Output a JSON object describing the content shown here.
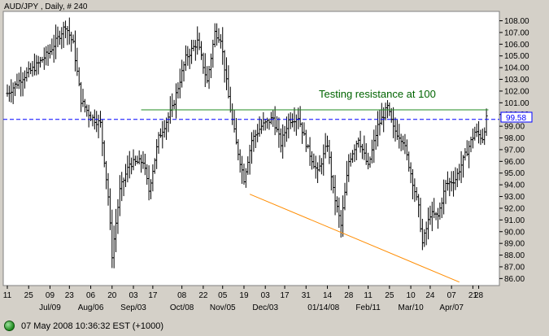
{
  "colors": {
    "background": "#d4d0c8",
    "plot_background": "#ffffff",
    "bars": "#000000",
    "support_line": "#ff8c00",
    "resistance_line": "#228b22",
    "dashed_line": "#0000ff",
    "annotation": "#006400"
  },
  "chart_data": {
    "type": "ohlc",
    "title": "AUD/JPY , Daily, # 240",
    "ylim": [
      85.4,
      108.8
    ],
    "yticks": [
      86.0,
      87.0,
      88.0,
      89.0,
      90.0,
      91.0,
      92.0,
      93.0,
      94.0,
      95.0,
      96.0,
      97.0,
      98.0,
      99.0,
      100.0,
      101.0,
      102.0,
      103.0,
      104.0,
      105.0,
      106.0,
      107.0,
      108.0
    ],
    "ytick_labels": [
      "86.00",
      "87.00",
      "88.00",
      "89.00",
      "90.00",
      "91.00",
      "92.00",
      "93.00",
      "94.00",
      "95.00",
      "96.00",
      "97.00",
      "98.00",
      "99.00",
      "100.00",
      "101.00",
      "102.00",
      "103.00",
      "104.00",
      "105.00",
      "106.00",
      "107.00",
      "108.00"
    ],
    "day_ticks": [
      {
        "label": "11",
        "i": 0
      },
      {
        "label": "25",
        "i": 11
      },
      {
        "label": "09",
        "i": 22
      },
      {
        "label": "23",
        "i": 32
      },
      {
        "label": "06",
        "i": 43
      },
      {
        "label": "20",
        "i": 54
      },
      {
        "label": "03",
        "i": 65
      },
      {
        "label": "17",
        "i": 75
      },
      {
        "label": "08",
        "i": 90
      },
      {
        "label": "22",
        "i": 101
      },
      {
        "label": "05",
        "i": 111
      },
      {
        "label": "19",
        "i": 122
      },
      {
        "label": "03",
        "i": 133
      },
      {
        "label": "17",
        "i": 143
      },
      {
        "label": "31",
        "i": 154
      },
      {
        "label": "14",
        "i": 165
      },
      {
        "label": "28",
        "i": 176
      },
      {
        "label": "11",
        "i": 186
      },
      {
        "label": "25",
        "i": 197
      },
      {
        "label": "10",
        "i": 208
      },
      {
        "label": "24",
        "i": 218
      },
      {
        "label": "07",
        "i": 229
      },
      {
        "label": "21",
        "i": 240
      },
      {
        "label": "28",
        "i": 243
      }
    ],
    "month_ticks": [
      {
        "label": "Jul/09",
        "i": 22
      },
      {
        "label": "Aug/06",
        "i": 43
      },
      {
        "label": "Sep/03",
        "i": 65
      },
      {
        "label": "Oct/08",
        "i": 90
      },
      {
        "label": "Nov/05",
        "i": 111
      },
      {
        "label": "Dec/03",
        "i": 133
      },
      {
        "label": "01/14/08",
        "i": 163
      },
      {
        "label": "Feb/11",
        "i": 186
      },
      {
        "label": "Mar/10",
        "i": 208
      },
      {
        "label": "Apr/07",
        "i": 229
      }
    ],
    "anchors": [
      [
        0,
        101.8
      ],
      [
        8,
        103.2
      ],
      [
        14,
        104.0
      ],
      [
        22,
        105.4
      ],
      [
        30,
        107.6
      ],
      [
        34,
        106.0
      ],
      [
        38,
        101.2
      ],
      [
        43,
        99.8
      ],
      [
        48,
        99.2
      ],
      [
        52,
        93.0
      ],
      [
        54,
        88.0
      ],
      [
        58,
        93.5
      ],
      [
        63,
        95.8
      ],
      [
        70,
        96.0
      ],
      [
        73,
        93.5
      ],
      [
        78,
        98.0
      ],
      [
        85,
        100.5
      ],
      [
        92,
        104.8
      ],
      [
        98,
        106.2
      ],
      [
        103,
        102.8
      ],
      [
        107,
        107.0
      ],
      [
        110,
        106.5
      ],
      [
        114,
        101.5
      ],
      [
        118,
        97.5
      ],
      [
        122,
        94.5
      ],
      [
        126,
        97.8
      ],
      [
        131,
        99.0
      ],
      [
        137,
        99.7
      ],
      [
        141,
        97.5
      ],
      [
        145,
        99.5
      ],
      [
        150,
        99.8
      ],
      [
        155,
        97.0
      ],
      [
        160,
        95.0
      ],
      [
        165,
        97.5
      ],
      [
        168,
        93.5
      ],
      [
        172,
        90.5
      ],
      [
        176,
        96.0
      ],
      [
        181,
        98.0
      ],
      [
        186,
        95.5
      ],
      [
        191,
        99.0
      ],
      [
        196,
        100.6
      ],
      [
        199,
        98.8
      ],
      [
        204,
        97.8
      ],
      [
        208,
        95.0
      ],
      [
        212,
        92.0
      ],
      [
        214,
        89.0
      ],
      [
        218,
        91.5
      ],
      [
        222,
        91.3
      ],
      [
        226,
        94.0
      ],
      [
        231,
        94.5
      ],
      [
        236,
        96.5
      ],
      [
        241,
        98.5
      ],
      [
        245,
        98.0
      ],
      [
        247,
        99.6
      ]
    ],
    "bar_count": 248,
    "reference_lines": [
      {
        "type": "horizontal-dashed",
        "y": 99.58,
        "label": "99.58"
      },
      {
        "type": "resistance",
        "y": 100.4,
        "from_i": 69,
        "to_i": 248
      },
      {
        "type": "support-trendline",
        "from": [
          125,
          93.2
        ],
        "to": [
          233,
          85.7
        ]
      }
    ],
    "annotations": [
      {
        "text": "Testing resistance at 100"
      }
    ],
    "price_marker": {
      "value": 99.58,
      "label": "99.58"
    }
  },
  "status_bar": {
    "timestamp": "07 May 2008 10:36:32  EST (+1000)"
  }
}
